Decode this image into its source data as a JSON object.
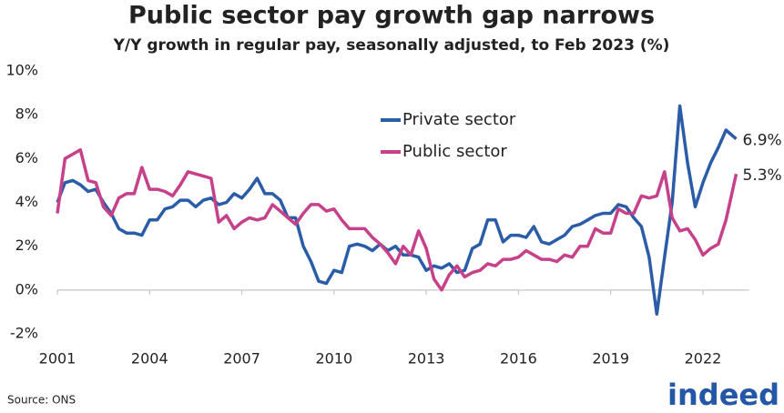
{
  "chart_data": {
    "type": "line",
    "title": "Public sector pay growth gap narrows",
    "subtitle": "Y/Y growth in regular pay, seasonally adjusted, to Feb 2023 (%)",
    "source": "Source: ONS",
    "logo": "indeed",
    "legend": "top-center",
    "x": [
      2001,
      2001.25,
      2001.5,
      2001.75,
      2002,
      2002.25,
      2002.5,
      2002.75,
      2003,
      2003.25,
      2003.5,
      2003.75,
      2004,
      2004.25,
      2004.5,
      2004.75,
      2005,
      2005.25,
      2005.5,
      2005.75,
      2006,
      2006.25,
      2006.5,
      2006.75,
      2007,
      2007.25,
      2007.5,
      2007.75,
      2008,
      2008.25,
      2008.5,
      2008.75,
      2009,
      2009.25,
      2009.5,
      2009.75,
      2010,
      2010.25,
      2010.5,
      2010.75,
      2011,
      2011.25,
      2011.5,
      2011.75,
      2012,
      2012.25,
      2012.5,
      2012.75,
      2013,
      2013.25,
      2013.5,
      2013.75,
      2014,
      2014.25,
      2014.5,
      2014.75,
      2015,
      2015.25,
      2015.5,
      2015.75,
      2016,
      2016.25,
      2016.5,
      2016.75,
      2017,
      2017.25,
      2017.5,
      2017.75,
      2018,
      2018.25,
      2018.5,
      2018.75,
      2019,
      2019.25,
      2019.5,
      2019.75,
      2020,
      2020.25,
      2020.5,
      2020.75,
      2021,
      2021.25,
      2021.5,
      2021.75,
      2022,
      2022.25,
      2022.5,
      2022.75,
      2023.083
    ],
    "series": [
      {
        "name": "Private sector",
        "color": "#2b5ca8",
        "end_label": "6.9%",
        "values": [
          4.0,
          4.9,
          5.0,
          4.8,
          4.5,
          4.6,
          4.0,
          3.5,
          2.8,
          2.6,
          2.6,
          2.5,
          3.2,
          3.2,
          3.7,
          3.8,
          4.1,
          4.1,
          3.8,
          4.1,
          4.2,
          3.9,
          4.0,
          4.4,
          4.2,
          4.6,
          5.1,
          4.4,
          4.4,
          4.1,
          3.3,
          3.3,
          2.0,
          1.3,
          0.4,
          0.3,
          0.9,
          0.8,
          2.0,
          2.1,
          2.0,
          1.8,
          2.1,
          1.8,
          2.0,
          1.6,
          1.6,
          1.5,
          0.9,
          1.1,
          1.0,
          1.2,
          0.8,
          0.9,
          1.9,
          2.1,
          3.2,
          3.2,
          2.2,
          2.5,
          2.5,
          2.4,
          2.9,
          2.2,
          2.1,
          2.3,
          2.5,
          2.9,
          3.0,
          3.2,
          3.4,
          3.5,
          3.5,
          3.9,
          3.8,
          3.3,
          2.9,
          1.5,
          -1.1,
          1.5,
          4.0,
          8.4,
          5.8,
          3.8,
          4.9,
          5.8,
          6.5,
          7.3,
          6.9
        ]
      },
      {
        "name": "Public sector",
        "color": "#c6418a",
        "end_label": "5.3%",
        "values": [
          3.5,
          6.0,
          6.2,
          6.4,
          5.0,
          4.9,
          3.8,
          3.4,
          4.2,
          4.4,
          4.4,
          5.6,
          4.6,
          4.6,
          4.5,
          4.3,
          4.8,
          5.4,
          5.3,
          5.2,
          5.1,
          3.1,
          3.4,
          2.8,
          3.1,
          3.3,
          3.2,
          3.3,
          3.9,
          3.6,
          3.3,
          3.0,
          3.5,
          3.9,
          3.9,
          3.6,
          3.7,
          3.2,
          2.8,
          2.8,
          2.8,
          2.4,
          2.1,
          1.7,
          1.2,
          2.0,
          1.6,
          2.7,
          1.9,
          0.5,
          0.0,
          0.7,
          1.1,
          0.6,
          0.8,
          0.9,
          1.2,
          1.1,
          1.4,
          1.4,
          1.5,
          1.8,
          1.6,
          1.4,
          1.4,
          1.3,
          1.6,
          1.5,
          2.0,
          2.0,
          2.8,
          2.6,
          2.6,
          3.7,
          3.5,
          3.5,
          4.3,
          4.2,
          4.3,
          5.4,
          3.3,
          2.7,
          2.8,
          2.3,
          1.6,
          1.9,
          2.1,
          3.2,
          5.3
        ]
      }
    ],
    "xlim": [
      2001,
      2023.5
    ],
    "xticks": [
      2001,
      2004,
      2007,
      2010,
      2013,
      2016,
      2019,
      2022
    ],
    "ylim": [
      -2,
      10
    ],
    "yticks": [
      {
        "value": -2,
        "label": "-2%"
      },
      {
        "value": 0,
        "label": "0%"
      },
      {
        "value": 2,
        "label": "2%"
      },
      {
        "value": 4,
        "label": "4%"
      },
      {
        "value": 6,
        "label": "6%"
      },
      {
        "value": 8,
        "label": "8%"
      },
      {
        "value": 10,
        "label": "10%"
      }
    ],
    "zero_line": true
  }
}
